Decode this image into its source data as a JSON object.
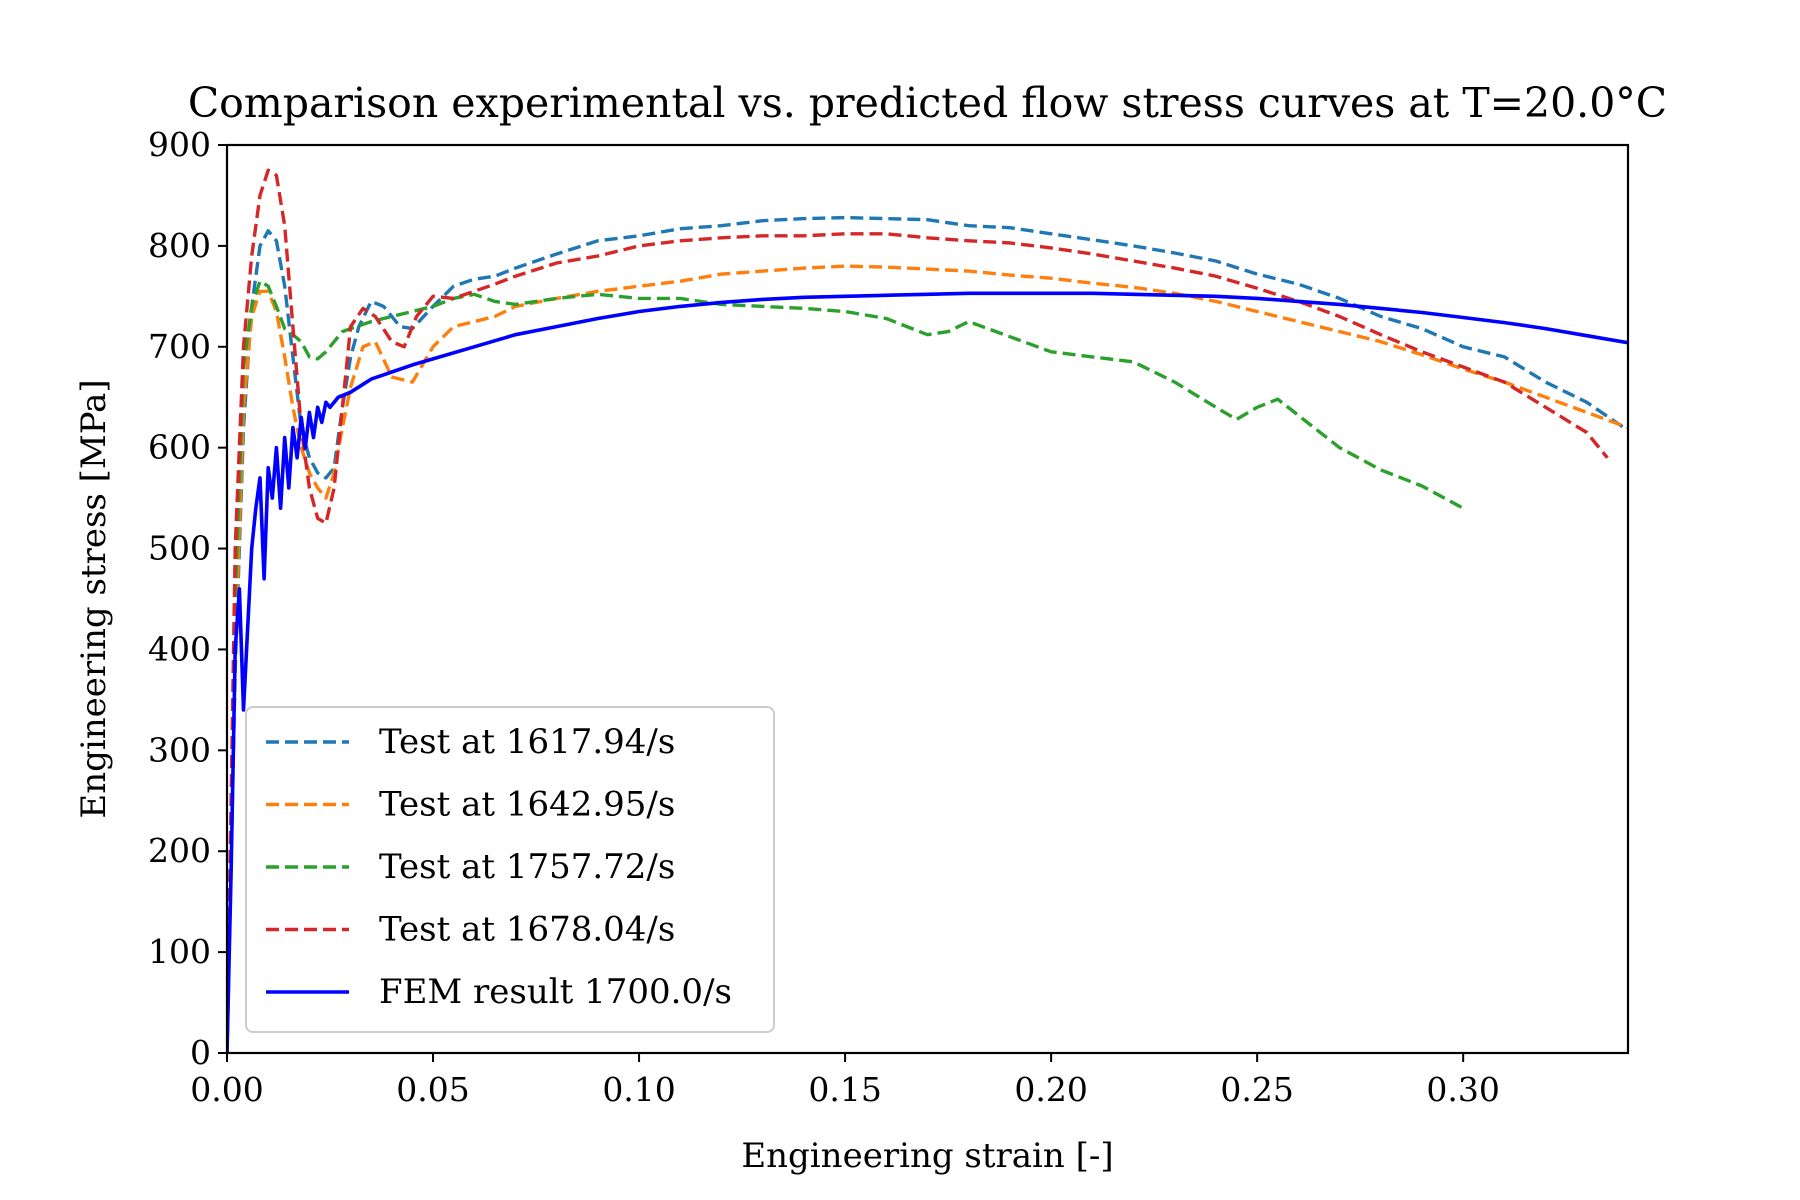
{
  "chart_data": {
    "type": "line",
    "title": "Comparison experimental vs. predicted flow stress curves at T=20.0°C",
    "xlabel": "Engineering strain [-]",
    "ylabel": "Engineering stress [MPa]",
    "xlim": [
      0,
      0.34
    ],
    "ylim": [
      0,
      900
    ],
    "xticks": [
      0.0,
      0.05,
      0.1,
      0.15,
      0.2,
      0.25,
      0.3
    ],
    "xtick_labels": [
      "0.00",
      "0.05",
      "0.10",
      "0.15",
      "0.20",
      "0.25",
      "0.30"
    ],
    "yticks": [
      0,
      100,
      200,
      300,
      400,
      500,
      600,
      700,
      800,
      900
    ],
    "ytick_labels": [
      "0",
      "100",
      "200",
      "300",
      "400",
      "500",
      "600",
      "700",
      "800",
      "900"
    ],
    "legend_position": "lower-left",
    "series": [
      {
        "name": "Test at 1617.94/s",
        "color": "#1f77b4",
        "style": "dashed",
        "x": [
          0.0,
          0.002,
          0.004,
          0.006,
          0.008,
          0.01,
          0.012,
          0.014,
          0.016,
          0.018,
          0.02,
          0.022,
          0.024,
          0.026,
          0.028,
          0.03,
          0.032,
          0.035,
          0.038,
          0.042,
          0.045,
          0.05,
          0.055,
          0.06,
          0.065,
          0.07,
          0.08,
          0.09,
          0.1,
          0.11,
          0.12,
          0.13,
          0.14,
          0.15,
          0.16,
          0.17,
          0.18,
          0.19,
          0.2,
          0.21,
          0.22,
          0.23,
          0.24,
          0.25,
          0.26,
          0.27,
          0.28,
          0.29,
          0.3,
          0.31,
          0.32,
          0.33,
          0.34
        ],
        "values": [
          0,
          380,
          620,
          740,
          800,
          815,
          805,
          760,
          690,
          620,
          590,
          575,
          570,
          580,
          640,
          690,
          720,
          745,
          740,
          720,
          718,
          740,
          760,
          767,
          770,
          778,
          792,
          805,
          810,
          817,
          820,
          825,
          827,
          828,
          827,
          826,
          820,
          818,
          812,
          806,
          800,
          793,
          785,
          772,
          762,
          748,
          730,
          718,
          700,
          690,
          665,
          645,
          617
        ]
      },
      {
        "name": "Test at 1642.95/s",
        "color": "#ff7f0e",
        "style": "dashed",
        "x": [
          0.0,
          0.002,
          0.004,
          0.006,
          0.008,
          0.01,
          0.012,
          0.014,
          0.016,
          0.018,
          0.02,
          0.022,
          0.024,
          0.026,
          0.028,
          0.03,
          0.033,
          0.036,
          0.04,
          0.045,
          0.05,
          0.055,
          0.06,
          0.065,
          0.07,
          0.08,
          0.09,
          0.1,
          0.11,
          0.12,
          0.13,
          0.14,
          0.15,
          0.16,
          0.17,
          0.18,
          0.19,
          0.2,
          0.21,
          0.22,
          0.23,
          0.24,
          0.25,
          0.26,
          0.27,
          0.28,
          0.29,
          0.3,
          0.31,
          0.32,
          0.33,
          0.34
        ],
        "values": [
          0,
          400,
          640,
          730,
          755,
          755,
          735,
          690,
          640,
          600,
          575,
          560,
          550,
          575,
          620,
          660,
          700,
          705,
          670,
          665,
          700,
          720,
          725,
          730,
          740,
          748,
          755,
          760,
          765,
          772,
          775,
          778,
          780,
          779,
          777,
          775,
          771,
          768,
          763,
          759,
          753,
          745,
          735,
          725,
          715,
          705,
          692,
          678,
          665,
          650,
          635,
          620
        ]
      },
      {
        "name": "Test at 1757.72/s",
        "color": "#2ca02c",
        "style": "dashed",
        "x": [
          0.0,
          0.002,
          0.004,
          0.006,
          0.008,
          0.01,
          0.012,
          0.014,
          0.016,
          0.018,
          0.02,
          0.022,
          0.024,
          0.026,
          0.028,
          0.03,
          0.035,
          0.04,
          0.045,
          0.05,
          0.055,
          0.06,
          0.065,
          0.07,
          0.08,
          0.09,
          0.1,
          0.11,
          0.12,
          0.13,
          0.14,
          0.15,
          0.16,
          0.17,
          0.175,
          0.18,
          0.19,
          0.2,
          0.21,
          0.22,
          0.23,
          0.24,
          0.245,
          0.25,
          0.255,
          0.26,
          0.27,
          0.28,
          0.29,
          0.3
        ],
        "values": [
          0,
          450,
          680,
          740,
          765,
          760,
          740,
          718,
          712,
          705,
          690,
          688,
          695,
          705,
          715,
          718,
          725,
          730,
          735,
          740,
          748,
          752,
          745,
          742,
          748,
          752,
          748,
          748,
          742,
          740,
          738,
          735,
          728,
          712,
          715,
          725,
          710,
          695,
          690,
          685,
          665,
          640,
          628,
          640,
          648,
          632,
          600,
          578,
          562,
          540
        ]
      },
      {
        "name": "Test at 1678.04/s",
        "color": "#d62728",
        "style": "dashed",
        "x": [
          0.0,
          0.002,
          0.004,
          0.006,
          0.008,
          0.01,
          0.012,
          0.014,
          0.016,
          0.018,
          0.02,
          0.022,
          0.024,
          0.026,
          0.028,
          0.03,
          0.033,
          0.036,
          0.04,
          0.043,
          0.046,
          0.05,
          0.055,
          0.06,
          0.065,
          0.07,
          0.08,
          0.09,
          0.1,
          0.11,
          0.12,
          0.13,
          0.14,
          0.15,
          0.16,
          0.17,
          0.18,
          0.19,
          0.2,
          0.21,
          0.22,
          0.23,
          0.24,
          0.25,
          0.26,
          0.27,
          0.28,
          0.29,
          0.3,
          0.31,
          0.32,
          0.33,
          0.335
        ],
        "values": [
          0,
          500,
          700,
          790,
          850,
          875,
          870,
          820,
          720,
          620,
          560,
          530,
          525,
          560,
          640,
          720,
          738,
          730,
          705,
          700,
          730,
          750,
          748,
          755,
          762,
          770,
          783,
          790,
          800,
          805,
          808,
          810,
          810,
          812,
          812,
          808,
          805,
          803,
          798,
          792,
          785,
          778,
          770,
          758,
          745,
          730,
          712,
          695,
          680,
          665,
          640,
          615,
          590
        ]
      },
      {
        "name": "FEM result 1700.0/s",
        "color": "#0000ff",
        "style": "solid",
        "x": [
          0.0,
          0.001,
          0.002,
          0.003,
          0.004,
          0.005,
          0.006,
          0.007,
          0.008,
          0.009,
          0.01,
          0.011,
          0.012,
          0.013,
          0.014,
          0.015,
          0.016,
          0.017,
          0.018,
          0.019,
          0.02,
          0.021,
          0.022,
          0.023,
          0.024,
          0.025,
          0.027,
          0.03,
          0.035,
          0.04,
          0.045,
          0.05,
          0.06,
          0.07,
          0.08,
          0.09,
          0.1,
          0.11,
          0.12,
          0.13,
          0.14,
          0.15,
          0.16,
          0.17,
          0.18,
          0.19,
          0.2,
          0.21,
          0.22,
          0.23,
          0.24,
          0.25,
          0.26,
          0.27,
          0.28,
          0.29,
          0.3,
          0.31,
          0.32,
          0.33,
          0.34
        ],
        "values": [
          0,
          180,
          400,
          460,
          340,
          420,
          500,
          540,
          570,
          470,
          580,
          550,
          600,
          540,
          610,
          560,
          620,
          590,
          630,
          600,
          635,
          610,
          640,
          625,
          645,
          640,
          650,
          655,
          668,
          675,
          682,
          688,
          700,
          712,
          720,
          728,
          735,
          740,
          744,
          747,
          749,
          750,
          751,
          752,
          753,
          753,
          753,
          753,
          752,
          751,
          750,
          748,
          745,
          742,
          738,
          734,
          729,
          724,
          718,
          711,
          704
        ]
      }
    ]
  }
}
